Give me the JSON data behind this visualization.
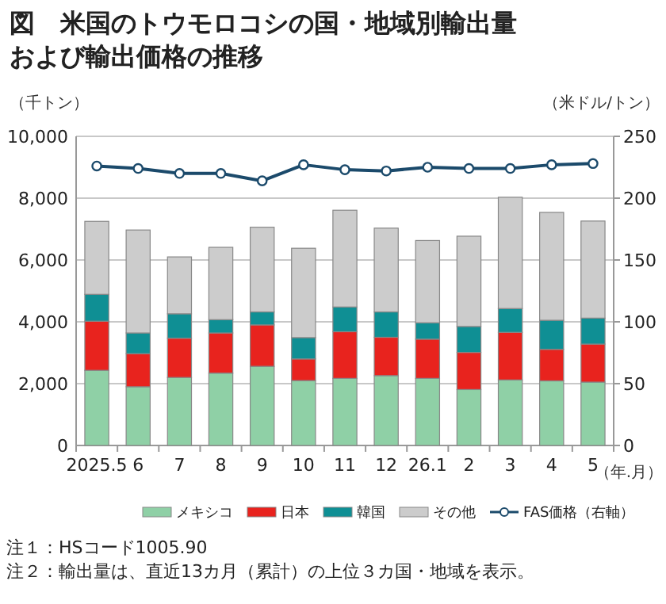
{
  "chart_data": {
    "type": "bar",
    "title": "図　米国のトウモロコシの国・地域別輸出量および輸出価格の推移",
    "ylabel": "（千トン）",
    "y2label": "（米ドル/トン）",
    "xlabel": "（年.月）",
    "categories": [
      "2025.5",
      "6",
      "7",
      "8",
      "9",
      "10",
      "11",
      "12",
      "26.1",
      "2",
      "3",
      "4",
      "5"
    ],
    "stacked": true,
    "ylim": [
      0,
      10000
    ],
    "yticks": [
      {
        "value": 0,
        "label": "0"
      },
      {
        "value": 2000,
        "label": "2,000"
      },
      {
        "value": 4000,
        "label": "4,000"
      },
      {
        "value": 6000,
        "label": "6,000"
      },
      {
        "value": 8000,
        "label": "8,000"
      },
      {
        "value": 10000,
        "label": "10,000"
      }
    ],
    "y2lim": [
      0,
      250
    ],
    "y2ticks": [
      0,
      50,
      100,
      150,
      200,
      250
    ],
    "grid": "y",
    "legend": "bottom",
    "marker": "circle",
    "series": [
      {
        "name": "メキシコ",
        "color": "#8fd0a6",
        "values": [
          2430,
          1900,
          2200,
          2340,
          2560,
          2100,
          2170,
          2260,
          2170,
          1810,
          2120,
          2090,
          2050
        ]
      },
      {
        "name": "日本",
        "color": "#e8231e",
        "values": [
          1590,
          1070,
          1270,
          1300,
          1340,
          700,
          1510,
          1240,
          1270,
          1200,
          1540,
          1020,
          1230
        ]
      },
      {
        "name": "韓国",
        "color": "#0f8f94",
        "values": [
          870,
          670,
          790,
          430,
          420,
          690,
          800,
          820,
          530,
          840,
          770,
          940,
          840
        ]
      },
      {
        "name": "その他",
        "color": "#cccccc",
        "values": [
          2360,
          3330,
          1840,
          2340,
          2740,
          2890,
          3130,
          2710,
          2660,
          2920,
          3600,
          3490,
          3140
        ]
      },
      {
        "name": "FAS価格（右軸）",
        "type": "line",
        "axis": "y2",
        "color": "#1b4a6b",
        "values": [
          226,
          224,
          220,
          220,
          214,
          227,
          223,
          222,
          225,
          224,
          224,
          227,
          228
        ]
      }
    ],
    "annotations": [
      "注１：HSコード1005.90",
      "注２：輸出量は、直近13カ月（累計）の上位３カ国・地域を表示。"
    ]
  }
}
